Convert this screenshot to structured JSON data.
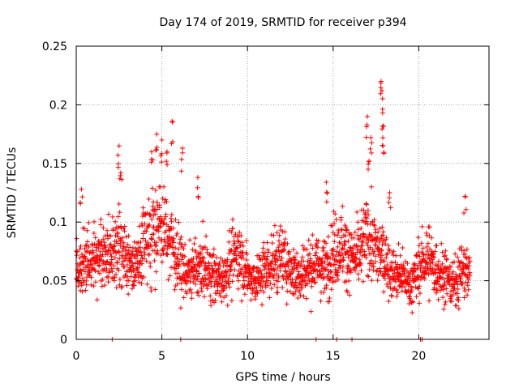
{
  "chart_data": {
    "type": "scatter",
    "title": "Day 174 of 2019, SRMTID for receiver p394",
    "xlabel": "GPS time / hours",
    "ylabel": "SRMTID / TECUs",
    "xlim": [
      0,
      24.1
    ],
    "ylim": [
      0,
      0.25
    ],
    "x_ticks": [
      0,
      5,
      10,
      15,
      20
    ],
    "x_tick_labels": [
      "0",
      "5",
      "10",
      "15",
      "20"
    ],
    "y_ticks": [
      0,
      0.05,
      0.1,
      0.15,
      0.2,
      0.25
    ],
    "y_tick_labels": [
      "0",
      "0.05",
      "0.1",
      "0.15",
      "0.2",
      "0.25"
    ],
    "grid": true,
    "marker": "plus",
    "series_color": "#ff0000",
    "x_range": [
      0,
      23
    ],
    "trend": [
      [
        0,
        0.058
      ],
      [
        0.5,
        0.065
      ],
      [
        1,
        0.068
      ],
      [
        1.5,
        0.072
      ],
      [
        2,
        0.075
      ],
      [
        2.5,
        0.08
      ],
      [
        3,
        0.065
      ],
      [
        3.5,
        0.06
      ],
      [
        4,
        0.085
      ],
      [
        4.5,
        0.095
      ],
      [
        5,
        0.095
      ],
      [
        5.5,
        0.085
      ],
      [
        6,
        0.065
      ],
      [
        6.5,
        0.055
      ],
      [
        7,
        0.06
      ],
      [
        7.5,
        0.06
      ],
      [
        8,
        0.055
      ],
      [
        8.5,
        0.05
      ],
      [
        9,
        0.065
      ],
      [
        9.5,
        0.075
      ],
      [
        10,
        0.055
      ],
      [
        10.5,
        0.05
      ],
      [
        11,
        0.06
      ],
      [
        11.5,
        0.065
      ],
      [
        12,
        0.07
      ],
      [
        12.5,
        0.06
      ],
      [
        13,
        0.055
      ],
      [
        13.5,
        0.06
      ],
      [
        14,
        0.065
      ],
      [
        14.5,
        0.06
      ],
      [
        15,
        0.075
      ],
      [
        15.5,
        0.08
      ],
      [
        16,
        0.07
      ],
      [
        16.5,
        0.07
      ],
      [
        17,
        0.09
      ],
      [
        17.5,
        0.075
      ],
      [
        18,
        0.07
      ],
      [
        18.5,
        0.055
      ],
      [
        19,
        0.055
      ],
      [
        19.5,
        0.045
      ],
      [
        20,
        0.06
      ],
      [
        20.5,
        0.07
      ],
      [
        21,
        0.06
      ],
      [
        21.5,
        0.055
      ],
      [
        22,
        0.045
      ],
      [
        22.5,
        0.06
      ],
      [
        23,
        0.055
      ]
    ],
    "spikes": [
      [
        0.3,
        0.128
      ],
      [
        2.5,
        0.165
      ],
      [
        2.6,
        0.142
      ],
      [
        4.4,
        0.16
      ],
      [
        4.7,
        0.175
      ],
      [
        5.0,
        0.17
      ],
      [
        5.3,
        0.16
      ],
      [
        5.6,
        0.186
      ],
      [
        6.2,
        0.163
      ],
      [
        7.1,
        0.138
      ],
      [
        14.6,
        0.134
      ],
      [
        17.0,
        0.19
      ],
      [
        17.2,
        0.172
      ],
      [
        17.1,
        0.152
      ],
      [
        17.8,
        0.22
      ],
      [
        17.85,
        0.212
      ],
      [
        17.9,
        0.182
      ],
      [
        17.9,
        0.172
      ],
      [
        18.3,
        0.125
      ],
      [
        22.7,
        0.122
      ]
    ],
    "zero_points": [
      2.1,
      6.1,
      14.0,
      15.2,
      16.1,
      20.1,
      20.2
    ]
  }
}
